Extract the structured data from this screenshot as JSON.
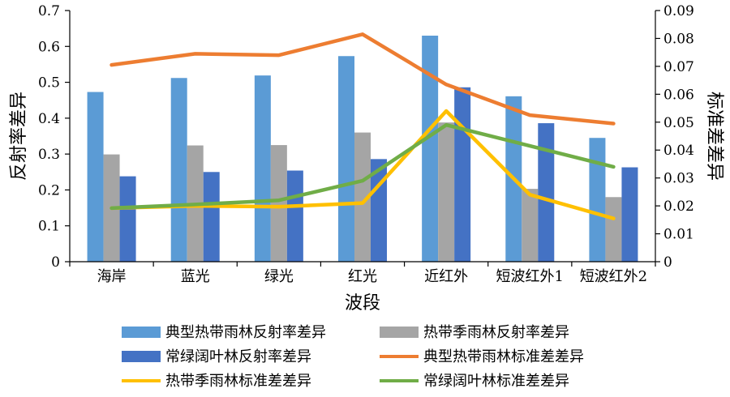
{
  "chart_data": {
    "type": "bar",
    "categories": [
      "海岸",
      "蓝光",
      "绿光",
      "红光",
      "近红外",
      "短波红外1",
      "短波红外2"
    ],
    "xlabel": "波段",
    "ylabel": "反射率差异",
    "y2label": "标准差差异",
    "ylim": [
      0,
      0.7
    ],
    "y2lim": [
      0,
      0.09
    ],
    "yticks": [
      "0",
      "0.1",
      "0.2",
      "0.3",
      "0.4",
      "0.5",
      "0.6",
      "0.7"
    ],
    "y2ticks": [
      "0",
      "0.01",
      "0.02",
      "0.03",
      "0.04",
      "0.05",
      "0.06",
      "0.07",
      "0.08",
      "0.09"
    ],
    "grid": false,
    "legend_position": "bottom",
    "bar_series": [
      {
        "name": "典型热带雨林反射率差异",
        "color": "#5b9bd5",
        "values": [
          0.473,
          0.512,
          0.519,
          0.573,
          0.63,
          0.461,
          0.345
        ]
      },
      {
        "name": "热带季雨林反射率差异",
        "color": "#a5a5a5",
        "values": [
          0.299,
          0.324,
          0.325,
          0.36,
          0.388,
          0.203,
          0.18
        ]
      },
      {
        "name": "常绿阔叶林反射率差异",
        "color": "#4472c4",
        "values": [
          0.238,
          0.25,
          0.254,
          0.286,
          0.486,
          0.386,
          0.263
        ]
      }
    ],
    "line_series": [
      {
        "name": "典型热带雨林标准差差异",
        "color": "#ed7d31",
        "values": [
          0.0705,
          0.0745,
          0.074,
          0.0815,
          0.0635,
          0.0525,
          0.0495
        ]
      },
      {
        "name": "热带季雨林标准差差异",
        "color": "#ffc000",
        "values": [
          0.0192,
          0.02,
          0.0197,
          0.021,
          0.054,
          0.024,
          0.0155
        ]
      },
      {
        "name": "常绿阔叶林标准差差异",
        "color": "#70ad47",
        "values": [
          0.0192,
          0.0205,
          0.022,
          0.029,
          0.049,
          0.0415,
          0.034
        ]
      }
    ]
  }
}
